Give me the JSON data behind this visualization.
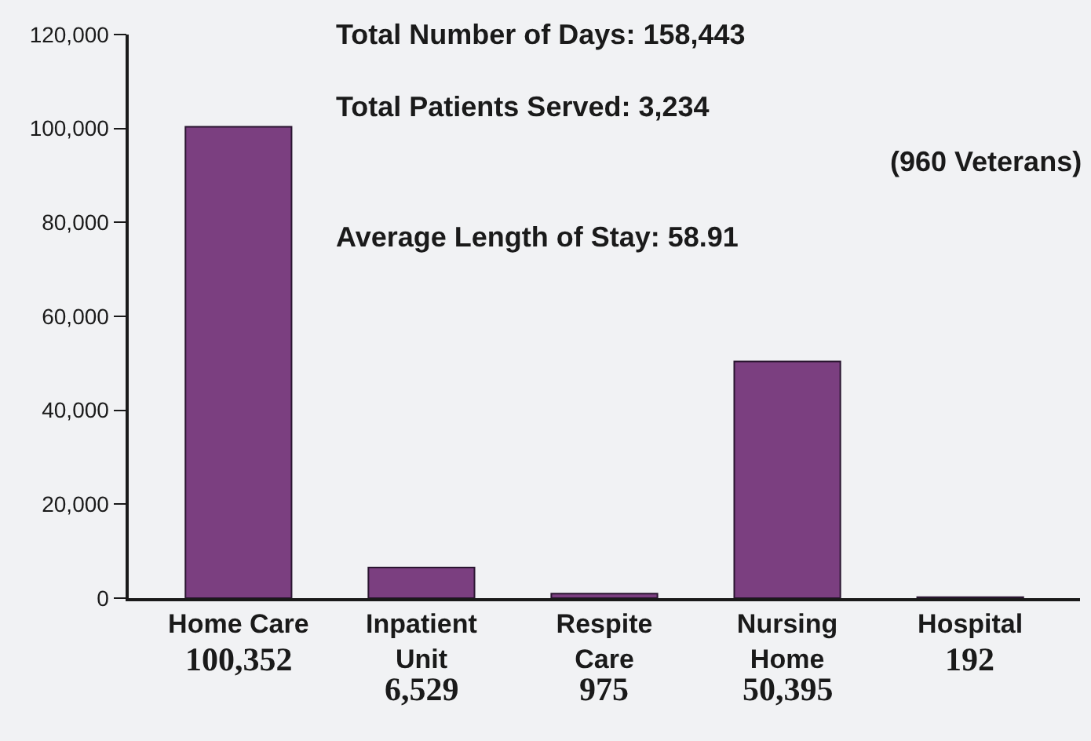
{
  "chart_data": {
    "type": "bar",
    "categories": [
      "Home Care",
      "Inpatient\nUnit",
      "Respite\nCare",
      "Nursing\nHome",
      "Hospital"
    ],
    "values": [
      100352,
      6529,
      975,
      50395,
      192
    ],
    "value_labels": [
      "100,352",
      "6,529",
      "975",
      "50,395",
      "192"
    ],
    "color": "#7b3f80",
    "ylim": [
      0,
      120000
    ],
    "yticks": [
      {
        "value": 0,
        "label": "0"
      },
      {
        "value": 20000,
        "label": "20,000"
      },
      {
        "value": 40000,
        "label": "40,000"
      },
      {
        "value": 60000,
        "label": "60,000"
      },
      {
        "value": 80000,
        "label": "80,000"
      },
      {
        "value": 100000,
        "label": "100,000"
      },
      {
        "value": 120000,
        "label": "120,000"
      }
    ],
    "grid": false,
    "legend": false,
    "annotations": [
      "Total Number of Days: 158,443",
      "Total Patients Served: 3,234",
      "(960 Veterans)",
      "Average Length of Stay: 58.91"
    ]
  }
}
